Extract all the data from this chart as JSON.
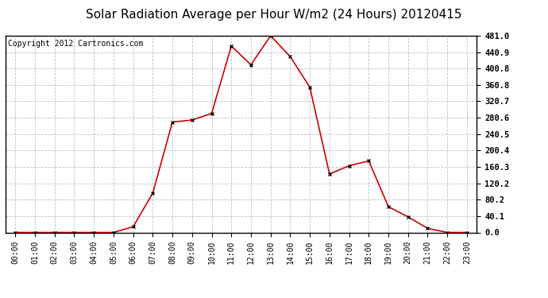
{
  "title": "Solar Radiation Average per Hour W/m2 (24 Hours) 20120415",
  "copyright": "Copyright 2012 Cartronics.com",
  "hours": [
    "00:00",
    "01:00",
    "02:00",
    "03:00",
    "04:00",
    "05:00",
    "06:00",
    "07:00",
    "08:00",
    "09:00",
    "10:00",
    "11:00",
    "12:00",
    "13:00",
    "14:00",
    "15:00",
    "16:00",
    "17:00",
    "18:00",
    "19:00",
    "20:00",
    "21:00",
    "22:00",
    "23:00"
  ],
  "values": [
    0.0,
    0.0,
    0.0,
    0.0,
    0.0,
    0.0,
    14.0,
    96.0,
    270.0,
    275.0,
    291.0,
    456.0,
    410.0,
    481.0,
    430.0,
    355.0,
    143.0,
    163.0,
    175.0,
    63.0,
    38.0,
    10.0,
    0.0,
    0.0
  ],
  "line_color": "#cc0000",
  "marker": "x",
  "marker_color": "#000000",
  "background_color": "#ffffff",
  "grid_color": "#c0c0c0",
  "ylim": [
    0.0,
    481.0
  ],
  "yticks": [
    0.0,
    40.1,
    80.2,
    120.2,
    160.3,
    200.4,
    240.5,
    280.6,
    320.7,
    360.8,
    400.8,
    440.9,
    481.0
  ],
  "title_fontsize": 11,
  "copyright_fontsize": 7,
  "tick_fontsize": 7,
  "ytick_fontsize": 7.5
}
